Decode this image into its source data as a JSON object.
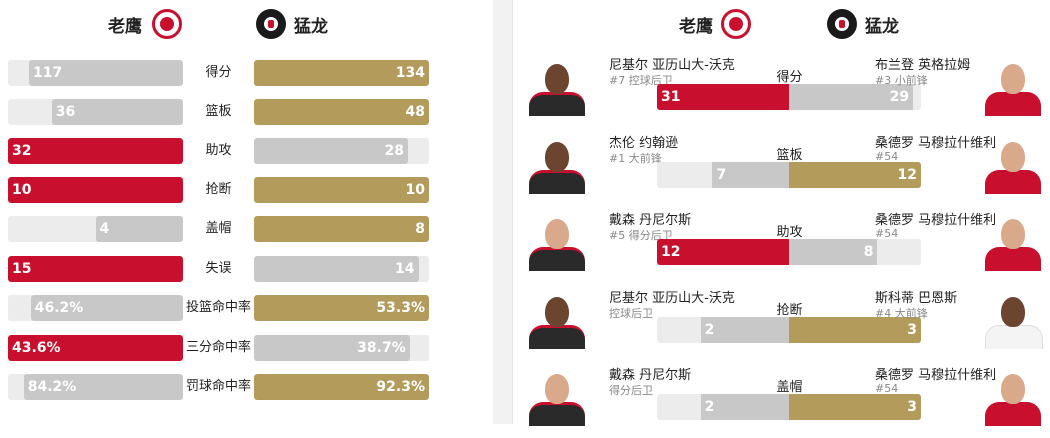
{
  "teams": {
    "home": {
      "name": "老鹰",
      "logo_icon": "hawks-logo-icon",
      "color": "#c8102e"
    },
    "away": {
      "name": "猛龙",
      "logo_icon": "raptors-logo-icon",
      "color": "#b39b5c"
    }
  },
  "team_stats": [
    {
      "label": "得分",
      "home": "117",
      "away": "134",
      "home_pct": 0.88,
      "away_pct": 1.0,
      "leader": "away"
    },
    {
      "label": "篮板",
      "home": "36",
      "away": "48",
      "home_pct": 0.75,
      "away_pct": 1.0,
      "leader": "away"
    },
    {
      "label": "助攻",
      "home": "32",
      "away": "28",
      "home_pct": 1.0,
      "away_pct": 0.88,
      "leader": "home"
    },
    {
      "label": "抢断",
      "home": "10",
      "away": "10",
      "home_pct": 1.0,
      "away_pct": 1.0,
      "leader": "tie"
    },
    {
      "label": "盖帽",
      "home": "4",
      "away": "8",
      "home_pct": 0.5,
      "away_pct": 1.0,
      "leader": "away"
    },
    {
      "label": "失误",
      "home": "15",
      "away": "14",
      "home_pct": 1.0,
      "away_pct": 0.94,
      "leader": "home"
    },
    {
      "label": "投篮命中率",
      "home": "46.2%",
      "away": "53.3%",
      "home_pct": 0.87,
      "away_pct": 1.0,
      "leader": "away"
    },
    {
      "label": "三分命中率",
      "home": "43.6%",
      "away": "38.7%",
      "home_pct": 1.0,
      "away_pct": 0.89,
      "leader": "home"
    },
    {
      "label": "罚球命中率",
      "home": "84.2%",
      "away": "92.3%",
      "home_pct": 0.91,
      "away_pct": 1.0,
      "leader": "away"
    }
  ],
  "leaders": [
    {
      "category": "得分",
      "home_player": {
        "name": "尼基尔 亚历山大-沃克",
        "sub": "#7 控球后卫",
        "value": "31",
        "pct": 1.0
      },
      "away_player": {
        "name": "布兰登 英格拉姆",
        "sub": "#3 小前锋",
        "value": "29",
        "pct": 0.94
      },
      "leader": "home"
    },
    {
      "category": "篮板",
      "home_player": {
        "name": "杰伦 约翰逊",
        "sub": "#1 大前锋",
        "value": "7",
        "pct": 0.58
      },
      "away_player": {
        "name": "桑德罗 马穆拉什维利",
        "sub": "#54",
        "value": "12",
        "pct": 1.0
      },
      "leader": "away"
    },
    {
      "category": "助攻",
      "home_player": {
        "name": "戴森 丹尼尔斯",
        "sub": "#5 得分后卫",
        "value": "12",
        "pct": 1.0
      },
      "away_player": {
        "name": "桑德罗 马穆拉什维利",
        "sub": "#54",
        "value": "8",
        "pct": 0.67
      },
      "leader": "home"
    },
    {
      "category": "抢断",
      "home_player": {
        "name": "尼基尔 亚历山大-沃克",
        "sub": "控球后卫",
        "value": "2",
        "pct": 0.67
      },
      "away_player": {
        "name": "斯科蒂 巴恩斯",
        "sub": "#4 大前锋",
        "value": "3",
        "pct": 1.0
      },
      "leader": "away"
    },
    {
      "category": "盖帽",
      "home_player": {
        "name": "戴森 丹尼尔斯",
        "sub": "得分后卫",
        "value": "2",
        "pct": 0.67
      },
      "away_player": {
        "name": "桑德罗 马穆拉什维利",
        "sub": "#54",
        "value": "3",
        "pct": 1.0
      },
      "leader": "away"
    }
  ]
}
